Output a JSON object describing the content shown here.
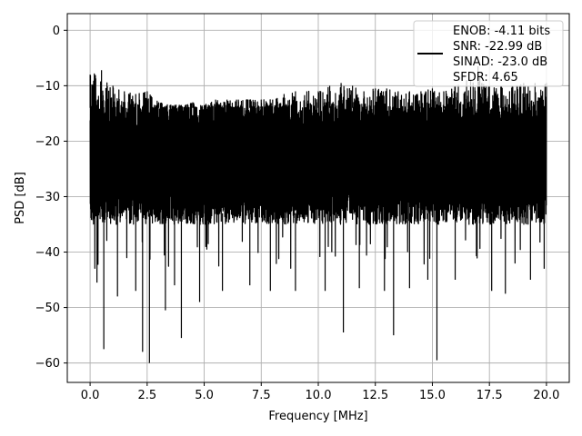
{
  "chart_data": {
    "type": "line",
    "xlabel": "Frequency [MHz]",
    "ylabel": "PSD [dB]",
    "xlim": [
      -1.0,
      21.0
    ],
    "ylim": [
      -63.5,
      3.0
    ],
    "x_ticks": [
      0.0,
      2.5,
      5.0,
      7.5,
      10.0,
      12.5,
      15.0,
      17.5,
      20.0
    ],
    "x_tick_labels": [
      "0.0",
      "2.5",
      "5.0",
      "7.5",
      "10.0",
      "12.5",
      "15.0",
      "17.5",
      "20.0"
    ],
    "y_ticks": [
      0,
      -10,
      -20,
      -30,
      -40,
      -50,
      -60
    ],
    "y_tick_labels": [
      "0",
      "−10",
      "−20",
      "−30",
      "−40",
      "−50",
      "−60"
    ],
    "grid": true,
    "legend_position": "top-right",
    "legend_lines": [
      "ENOB: -4.11 bits",
      "SNR: -22.99 dB",
      "SINAD: -23.0 dB",
      "SFDR: 4.65"
    ],
    "series_color": "#000000",
    "series": [
      {
        "x_range": [
          0.0,
          20.0
        ],
        "peaks": [
          {
            "x": 0.0,
            "y": -8.0
          },
          {
            "x": 0.5,
            "y": -7.2
          },
          {
            "x": 1.0,
            "y": -10.0
          },
          {
            "x": 1.5,
            "y": -11.0
          },
          {
            "x": 2.0,
            "y": -11.5
          },
          {
            "x": 2.5,
            "y": -11.0
          },
          {
            "x": 3.0,
            "y": -13.0
          },
          {
            "x": 3.5,
            "y": -13.5
          },
          {
            "x": 4.0,
            "y": -13.5
          },
          {
            "x": 4.5,
            "y": -13.0
          },
          {
            "x": 5.0,
            "y": -13.5
          },
          {
            "x": 5.5,
            "y": -12.5
          },
          {
            "x": 6.0,
            "y": -12.5
          },
          {
            "x": 6.5,
            "y": -12.5
          },
          {
            "x": 7.0,
            "y": -12.5
          },
          {
            "x": 7.5,
            "y": -12.5
          },
          {
            "x": 8.0,
            "y": -12.5
          },
          {
            "x": 8.5,
            "y": -11.5
          },
          {
            "x": 9.0,
            "y": -11.0
          },
          {
            "x": 9.5,
            "y": -11.0
          },
          {
            "x": 10.0,
            "y": -11.0
          },
          {
            "x": 10.5,
            "y": -10.0
          },
          {
            "x": 11.0,
            "y": -9.5
          },
          {
            "x": 11.5,
            "y": -10.0
          },
          {
            "x": 12.0,
            "y": -11.0
          },
          {
            "x": 12.5,
            "y": -10.5
          },
          {
            "x": 13.0,
            "y": -10.5
          },
          {
            "x": 13.5,
            "y": -11.0
          },
          {
            "x": 14.0,
            "y": -11.0
          },
          {
            "x": 14.5,
            "y": -11.0
          },
          {
            "x": 15.0,
            "y": -10.5
          },
          {
            "x": 15.5,
            "y": -11.0
          },
          {
            "x": 16.0,
            "y": -10.0
          },
          {
            "x": 16.5,
            "y": -9.0
          },
          {
            "x": 17.0,
            "y": -6.5
          },
          {
            "x": 17.5,
            "y": -10.0
          },
          {
            "x": 18.0,
            "y": -10.0
          },
          {
            "x": 18.5,
            "y": -10.0
          },
          {
            "x": 19.0,
            "y": -9.5
          },
          {
            "x": 19.5,
            "y": -9.5
          },
          {
            "x": 20.0,
            "y": -9.5
          }
        ],
        "troughs": [
          {
            "x": 0.3,
            "y": -45.5
          },
          {
            "x": 0.6,
            "y": -57.5
          },
          {
            "x": 1.2,
            "y": -48.0
          },
          {
            "x": 2.0,
            "y": -47.0
          },
          {
            "x": 2.3,
            "y": -58.0
          },
          {
            "x": 2.6,
            "y": -60.0
          },
          {
            "x": 3.3,
            "y": -50.5
          },
          {
            "x": 3.7,
            "y": -46.0
          },
          {
            "x": 4.0,
            "y": -55.5
          },
          {
            "x": 4.8,
            "y": -49.0
          },
          {
            "x": 5.8,
            "y": -47.0
          },
          {
            "x": 7.0,
            "y": -46.0
          },
          {
            "x": 7.9,
            "y": -47.0
          },
          {
            "x": 9.0,
            "y": -47.0
          },
          {
            "x": 10.3,
            "y": -47.0
          },
          {
            "x": 11.1,
            "y": -54.5
          },
          {
            "x": 11.8,
            "y": -46.5
          },
          {
            "x": 12.9,
            "y": -47.0
          },
          {
            "x": 13.3,
            "y": -55.0
          },
          {
            "x": 14.0,
            "y": -46.5
          },
          {
            "x": 14.8,
            "y": -45.0
          },
          {
            "x": 15.2,
            "y": -59.5
          },
          {
            "x": 16.0,
            "y": -45.0
          },
          {
            "x": 17.6,
            "y": -47.0
          },
          {
            "x": 18.2,
            "y": -47.5
          },
          {
            "x": 19.3,
            "y": -45.0
          },
          {
            "x": 19.9,
            "y": -43.0
          }
        ],
        "band_y": [
          -35.0,
          -14.0
        ]
      }
    ]
  }
}
